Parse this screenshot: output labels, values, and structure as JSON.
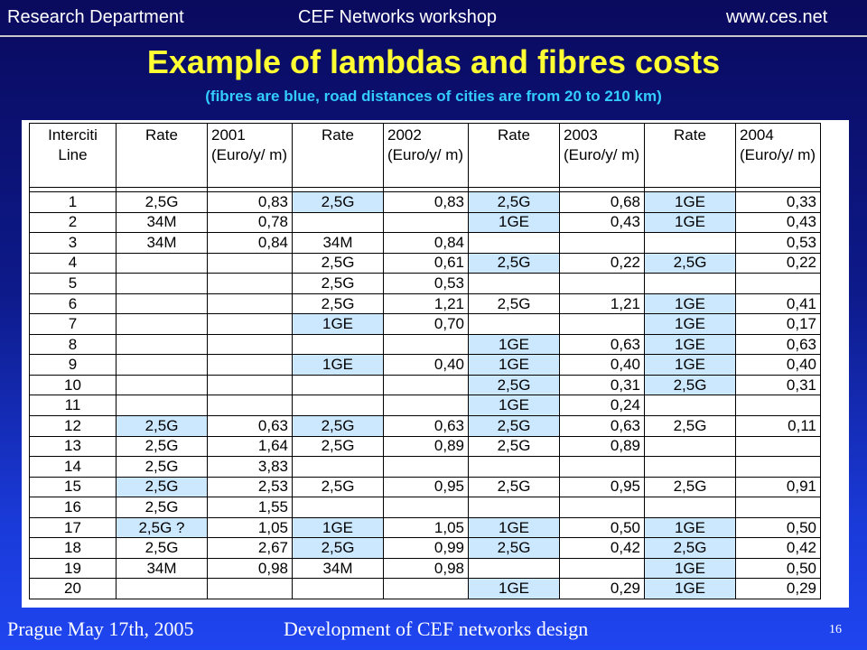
{
  "header": {
    "left": "Research Department",
    "center": "CEF Networks workshop",
    "right": "www.ces.net"
  },
  "title": "Example of lambdas and fibres costs",
  "subtitle": "(fibres are blue, road distances of cities are from 20 to 210 km)",
  "table": {
    "headers": [
      "Interciti Line",
      "Rate",
      "2001 (Euro/y/ m)",
      "Rate",
      "2002 (Euro/y/ m)",
      "Rate",
      "2003 (Euro/y/ m)",
      "Rate",
      "2004 (Euro/y/ m)"
    ],
    "rows": [
      {
        "line": "1",
        "r2001": "2,5G",
        "v2001": "0,83",
        "b2001": false,
        "r2002": "2,5G",
        "v2002": "0,83",
        "b2002": true,
        "r2003": "2,5G",
        "v2003": "0,68",
        "b2003": true,
        "r2004": "1GE",
        "v2004": "0,33",
        "b2004": true
      },
      {
        "line": "2",
        "r2001": "34M",
        "v2001": "0,78",
        "b2001": false,
        "r2002": "",
        "v2002": "",
        "b2002": false,
        "r2003": "1GE",
        "v2003": "0,43",
        "b2003": true,
        "r2004": "1GE",
        "v2004": "0,43",
        "b2004": true
      },
      {
        "line": "3",
        "r2001": "34M",
        "v2001": "0,84",
        "b2001": false,
        "r2002": "34M",
        "v2002": "0,84",
        "b2002": false,
        "r2003": "",
        "v2003": "",
        "b2003": false,
        "r2004": "",
        "v2004": "0,53",
        "b2004": false
      },
      {
        "line": "4",
        "r2001": "",
        "v2001": "",
        "b2001": false,
        "r2002": "2,5G",
        "v2002": "0,61",
        "b2002": false,
        "r2003": "2,5G",
        "v2003": "0,22",
        "b2003": true,
        "r2004": "2,5G",
        "v2004": "0,22",
        "b2004": true
      },
      {
        "line": "5",
        "r2001": "",
        "v2001": "",
        "b2001": false,
        "r2002": "2,5G",
        "v2002": "0,53",
        "b2002": false,
        "r2003": "",
        "v2003": "",
        "b2003": false,
        "r2004": "",
        "v2004": "",
        "b2004": false
      },
      {
        "line": "6",
        "r2001": "",
        "v2001": "",
        "b2001": false,
        "r2002": "2,5G",
        "v2002": "1,21",
        "b2002": false,
        "r2003": "2,5G",
        "v2003": "1,21",
        "b2003": false,
        "r2004": "1GE",
        "v2004": "0,41",
        "b2004": true
      },
      {
        "line": "7",
        "r2001": "",
        "v2001": "",
        "b2001": false,
        "r2002": "1GE",
        "v2002": "0,70",
        "b2002": true,
        "r2003": "",
        "v2003": "",
        "b2003": false,
        "r2004": "1GE",
        "v2004": "0,17",
        "b2004": true
      },
      {
        "line": "8",
        "r2001": "",
        "v2001": "",
        "b2001": false,
        "r2002": "",
        "v2002": "",
        "b2002": false,
        "r2003": "1GE",
        "v2003": "0,63",
        "b2003": true,
        "r2004": "1GE",
        "v2004": "0,63",
        "b2004": true
      },
      {
        "line": "9",
        "r2001": "",
        "v2001": "",
        "b2001": false,
        "r2002": "1GE",
        "v2002": "0,40",
        "b2002": true,
        "r2003": "1GE",
        "v2003": "0,40",
        "b2003": true,
        "r2004": "1GE",
        "v2004": "0,40",
        "b2004": true
      },
      {
        "line": "10",
        "r2001": "",
        "v2001": "",
        "b2001": false,
        "r2002": "",
        "v2002": "",
        "b2002": false,
        "r2003": "2,5G",
        "v2003": "0,31",
        "b2003": true,
        "r2004": "2,5G",
        "v2004": "0,31",
        "b2004": true
      },
      {
        "line": "11",
        "r2001": "",
        "v2001": "",
        "b2001": false,
        "r2002": "",
        "v2002": "",
        "b2002": false,
        "r2003": "1GE",
        "v2003": "0,24",
        "b2003": true,
        "r2004": "",
        "v2004": "",
        "b2004": false
      },
      {
        "line": "12",
        "r2001": "2,5G",
        "v2001": "0,63",
        "b2001": true,
        "r2002": "2,5G",
        "v2002": "0,63",
        "b2002": true,
        "r2003": "2,5G",
        "v2003": "0,63",
        "b2003": true,
        "r2004": "2,5G",
        "v2004": "0,11",
        "b2004": false
      },
      {
        "line": "13",
        "r2001": "2,5G",
        "v2001": "1,64",
        "b2001": false,
        "r2002": "2,5G",
        "v2002": "0,89",
        "b2002": false,
        "r2003": "2,5G",
        "v2003": "0,89",
        "b2003": false,
        "r2004": "",
        "v2004": "",
        "b2004": false
      },
      {
        "line": "14",
        "r2001": "2,5G",
        "v2001": "3,83",
        "b2001": false,
        "r2002": "",
        "v2002": "",
        "b2002": false,
        "r2003": "",
        "v2003": "",
        "b2003": false,
        "r2004": "",
        "v2004": "",
        "b2004": false
      },
      {
        "line": "15",
        "r2001": "2,5G",
        "v2001": "2,53",
        "b2001": true,
        "r2002": "2,5G",
        "v2002": "0,95",
        "b2002": false,
        "r2003": "2,5G",
        "v2003": "0,95",
        "b2003": false,
        "r2004": "2,5G",
        "v2004": "0,91",
        "b2004": false
      },
      {
        "line": "16",
        "r2001": "2,5G",
        "v2001": "1,55",
        "b2001": false,
        "r2002": "",
        "v2002": "",
        "b2002": false,
        "r2003": "",
        "v2003": "",
        "b2003": false,
        "r2004": "",
        "v2004": "",
        "b2004": false
      },
      {
        "line": "17",
        "r2001": "2,5G ?",
        "v2001": "1,05",
        "b2001": true,
        "r2002": "1GE",
        "v2002": "1,05",
        "b2002": true,
        "r2003": "1GE",
        "v2003": "0,50",
        "b2003": true,
        "r2004": "1GE",
        "v2004": "0,50",
        "b2004": true
      },
      {
        "line": "18",
        "r2001": "2,5G",
        "v2001": "2,67",
        "b2001": false,
        "r2002": "2,5G",
        "v2002": "0,99",
        "b2002": true,
        "r2003": "2,5G",
        "v2003": "0,42",
        "b2003": true,
        "r2004": "2,5G",
        "v2004": "0,42",
        "b2004": true
      },
      {
        "line": "19",
        "r2001": "34M",
        "v2001": "0,98",
        "b2001": false,
        "r2002": "34M",
        "v2002": "0,98",
        "b2002": false,
        "r2003": "",
        "v2003": "",
        "b2003": false,
        "r2004": "1GE",
        "v2004": "0,50",
        "b2004": true
      },
      {
        "line": "20",
        "r2001": "",
        "v2001": "",
        "b2001": false,
        "r2002": "",
        "v2002": "",
        "b2002": false,
        "r2003": "1GE",
        "v2003": "0,29",
        "b2003": true,
        "r2004": "1GE",
        "v2004": "0,29",
        "b2004": true
      }
    ]
  },
  "footer": {
    "left": "Prague May 17th, 2005",
    "center": "Development of CEF networks design",
    "page": "16"
  },
  "colors": {
    "title": "#ffff33",
    "subtitle": "#33ccff",
    "fibre_cell": "#cce8ff"
  }
}
